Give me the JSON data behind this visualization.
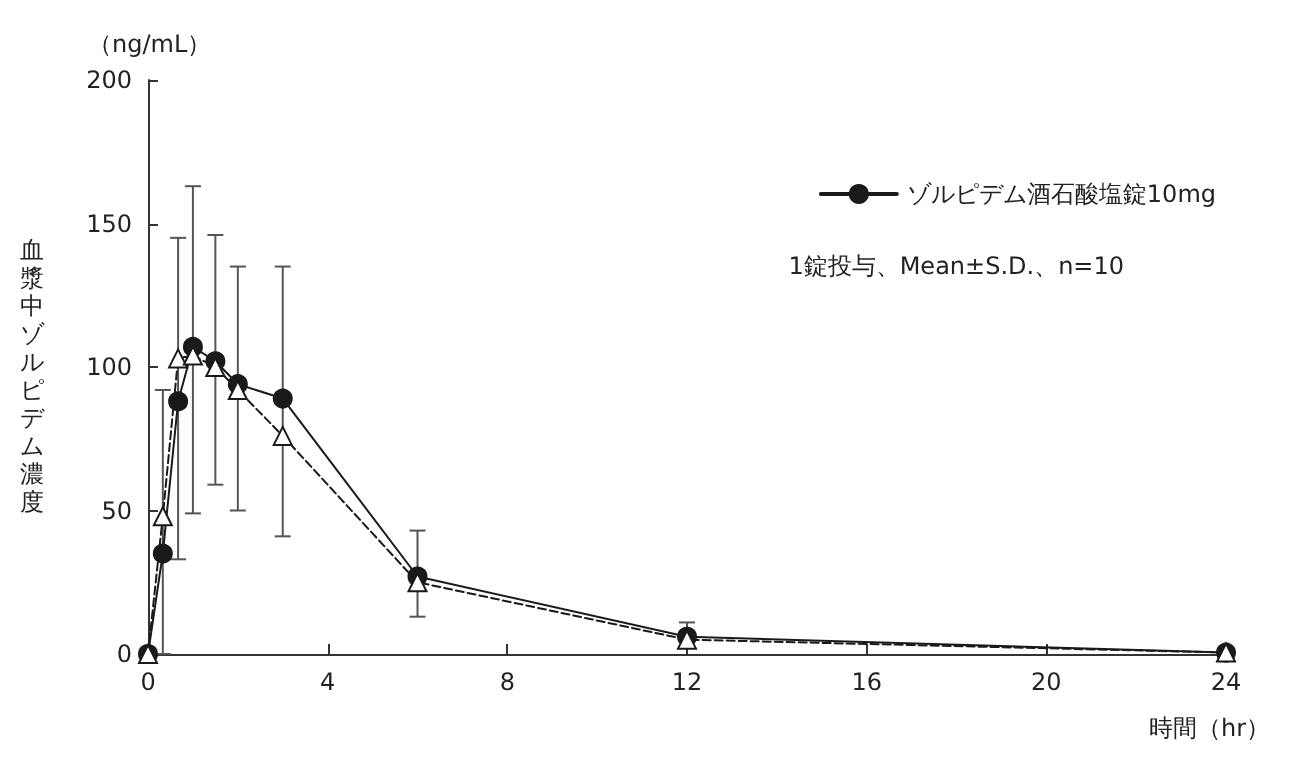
{
  "chart_data": {
    "type": "line",
    "xlabel": "時間（hr）",
    "ylabel": "血漿中ゾルピデム濃度",
    "annotations": [
      "（ng/mL）",
      "1錠投与、Mean±S.D.、n=10"
    ],
    "x": [
      0,
      0.33,
      0.67,
      1,
      1.5,
      2,
      3,
      6,
      12,
      24
    ],
    "series": [
      {
        "name": "ゾルピデム酒石酸塩錠10mg",
        "color": "#1a1a1a",
        "marker": "circle",
        "line_style": "solid",
        "values": [
          0,
          35,
          88,
          107,
          102,
          94,
          89,
          27,
          6,
          0.5
        ],
        "errors": [
          null,
          null,
          [
            33,
            145
          ],
          [
            49,
            163
          ],
          [
            59,
            146
          ],
          [
            50,
            135
          ],
          [
            41,
            135
          ],
          [
            13,
            43
          ],
          [
            3,
            11
          ],
          null
        ]
      },
      {
        "color": "#1a1a1a",
        "marker": "triangle",
        "line_style": "dashed",
        "values": [
          0,
          48,
          103,
          104,
          100,
          92,
          76,
          25,
          5,
          0.5
        ],
        "errors": [
          null,
          [
            0,
            92
          ],
          null,
          null,
          null,
          null,
          null,
          null,
          null,
          null
        ]
      }
    ],
    "xlim": [
      0,
      24
    ],
    "xticks": [
      0,
      4,
      8,
      12,
      16,
      20,
      24
    ],
    "ylim": [
      0,
      200
    ],
    "yticks": [
      0,
      50,
      100,
      150,
      200
    ],
    "grid": false,
    "legend": "top right"
  }
}
